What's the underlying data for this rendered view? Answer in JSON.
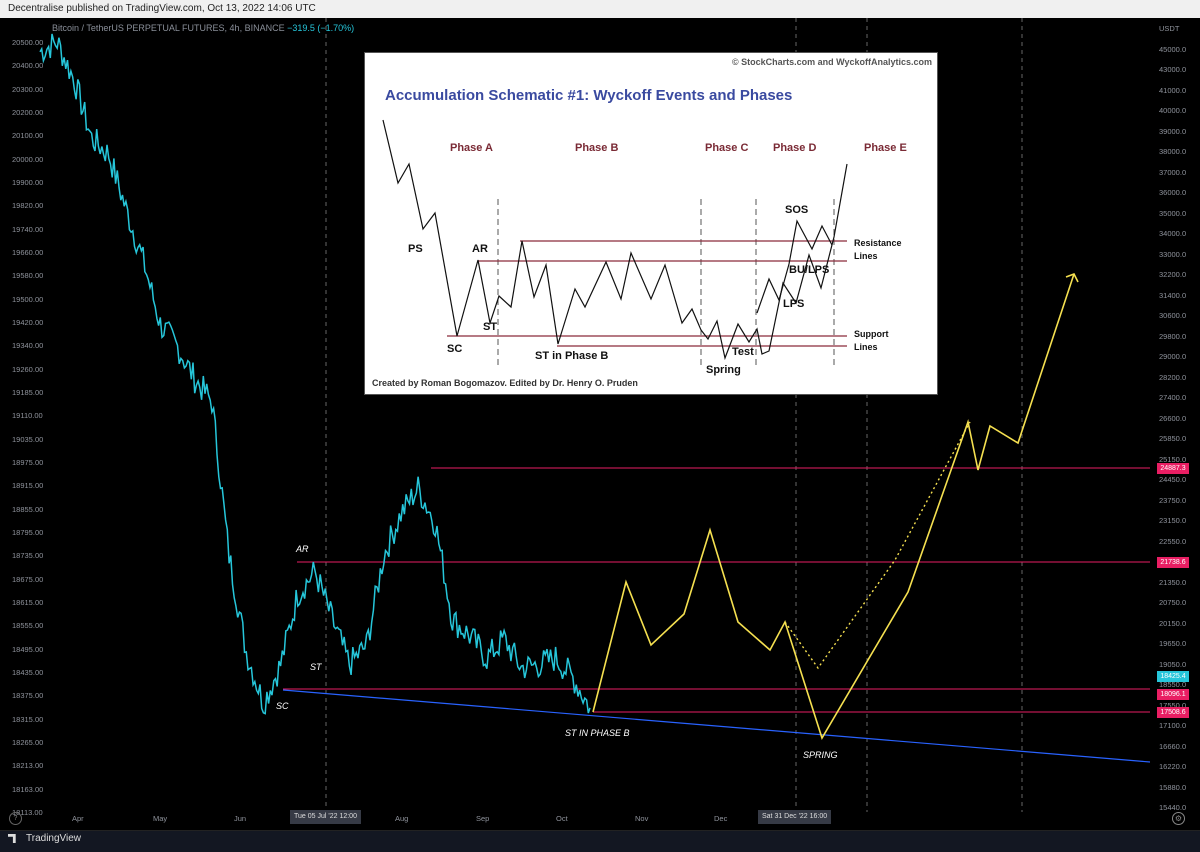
{
  "header": {
    "published": "Decentralise published on TradingView.com, Oct 13, 2022 14:06 UTC"
  },
  "symbol": {
    "name": "Bitcoin / TetherUS PERPETUAL FUTURES, 4h, BINANCE",
    "change": "−319.5 (−1.70%)"
  },
  "left_axis_ticks": [
    "20500.00",
    "20400.00",
    "20300.00",
    "20200.00",
    "20100.00",
    "20000.00",
    "19900.00",
    "19820.00",
    "19740.00",
    "19660.00",
    "19580.00",
    "19500.00",
    "19420.00",
    "19340.00",
    "19260.00",
    "19185.00",
    "19110.00",
    "19035.00",
    "18975.00",
    "18915.00",
    "18855.00",
    "18795.00",
    "18735.00",
    "18675.00",
    "18615.00",
    "18555.00",
    "18495.00",
    "18435.00",
    "18375.00",
    "18315.00",
    "18265.00",
    "18213.00",
    "18163.00",
    "18113.00"
  ],
  "right_axis_ticks": [
    "USDT",
    "45000.0",
    "43000.0",
    "41000.0",
    "40000.0",
    "39000.0",
    "38000.0",
    "37000.0",
    "36000.0",
    "35000.0",
    "34000.0",
    "33000.0",
    "32200.0",
    "31400.0",
    "30600.0",
    "29800.0",
    "29000.0",
    "28200.0",
    "27400.0",
    "26600.0",
    "25850.0",
    "25150.0",
    "24450.0",
    "23750.0",
    "23150.0",
    "22550.0",
    "21950.0",
    "21350.0",
    "20750.0",
    "20150.0",
    "19650.0",
    "19050.0",
    "18550.0",
    "17550.0",
    "17100.0",
    "16660.0",
    "16220.0",
    "15880.0",
    "15440.0"
  ],
  "x_axis_ticks": [
    "Apr",
    "May",
    "Jun",
    "Aug",
    "Sep",
    "Oct",
    "Nov",
    "Dec"
  ],
  "x_crosshair_labels": [
    "Tue 05 Jul '22   12:00",
    "Sat 31 Dec '22   16:00"
  ],
  "price_tags": [
    {
      "text": "24887.3",
      "color": "#e91e63"
    },
    {
      "text": "21738.6",
      "color": "#e91e63"
    },
    {
      "text": "18425.4",
      "color": "#26c6da"
    },
    {
      "text": "18096.1",
      "color": "#e91e63"
    },
    {
      "text": "17508.6",
      "color": "#e91e63"
    }
  ],
  "annotations": {
    "ar": "AR",
    "st": "ST",
    "sc": "SC",
    "st_phase_b": "ST IN PHASE B",
    "spring": "SPRING"
  },
  "inset": {
    "credit": "© StockCharts.com and WyckoffAnalytics.com",
    "title": "Accumulation Schematic #1: Wyckoff Events and Phases",
    "phases": [
      "Phase A",
      "Phase B",
      "Phase C",
      "Phase D",
      "Phase E"
    ],
    "labels": {
      "ps": "PS",
      "ar": "AR",
      "st": "ST",
      "sc": "SC",
      "st_b": "ST in Phase B",
      "spring": "Spring",
      "test": "Test",
      "sos": "SOS",
      "bulps": "BU/LPS",
      "lps": "LPS",
      "resistance_1": "Resistance",
      "resistance_2": "Lines",
      "support_1": "Support",
      "support_2": "Lines"
    },
    "created": "Created by Roman Bogomazov. Edited by Dr. Henry O. Pruden"
  },
  "footer": {
    "brand": "TradingView"
  },
  "colors": {
    "price": "#26c6da",
    "projection": "#f5e050",
    "level": "#e91e63",
    "trend": "#2962ff"
  },
  "chart_data": {
    "type": "line",
    "series": [
      {
        "values": [
          20470,
          20500,
          20380,
          20200,
          20150,
          19980,
          19820,
          19620,
          19550,
          19450,
          19380,
          18900,
          18600,
          18440,
          18560,
          18780,
          18850,
          18700,
          18560,
          18620,
          18900,
          19030,
          19110,
          19000,
          18700,
          18650,
          18580,
          18640,
          18550,
          18560,
          18580,
          18520,
          18425
        ]
      },
      {
        "values": [
          17508,
          21000,
          19900,
          22500,
          20500,
          23000,
          19800,
          21700,
          19000,
          18800,
          17100,
          24887,
          25850,
          24887,
          26600,
          26600,
          26100,
          33000
        ]
      }
    ],
    "levels": [
      24887.3,
      21738.6,
      18096.1,
      17508.6
    ],
    "last_price": 18425.4
  }
}
